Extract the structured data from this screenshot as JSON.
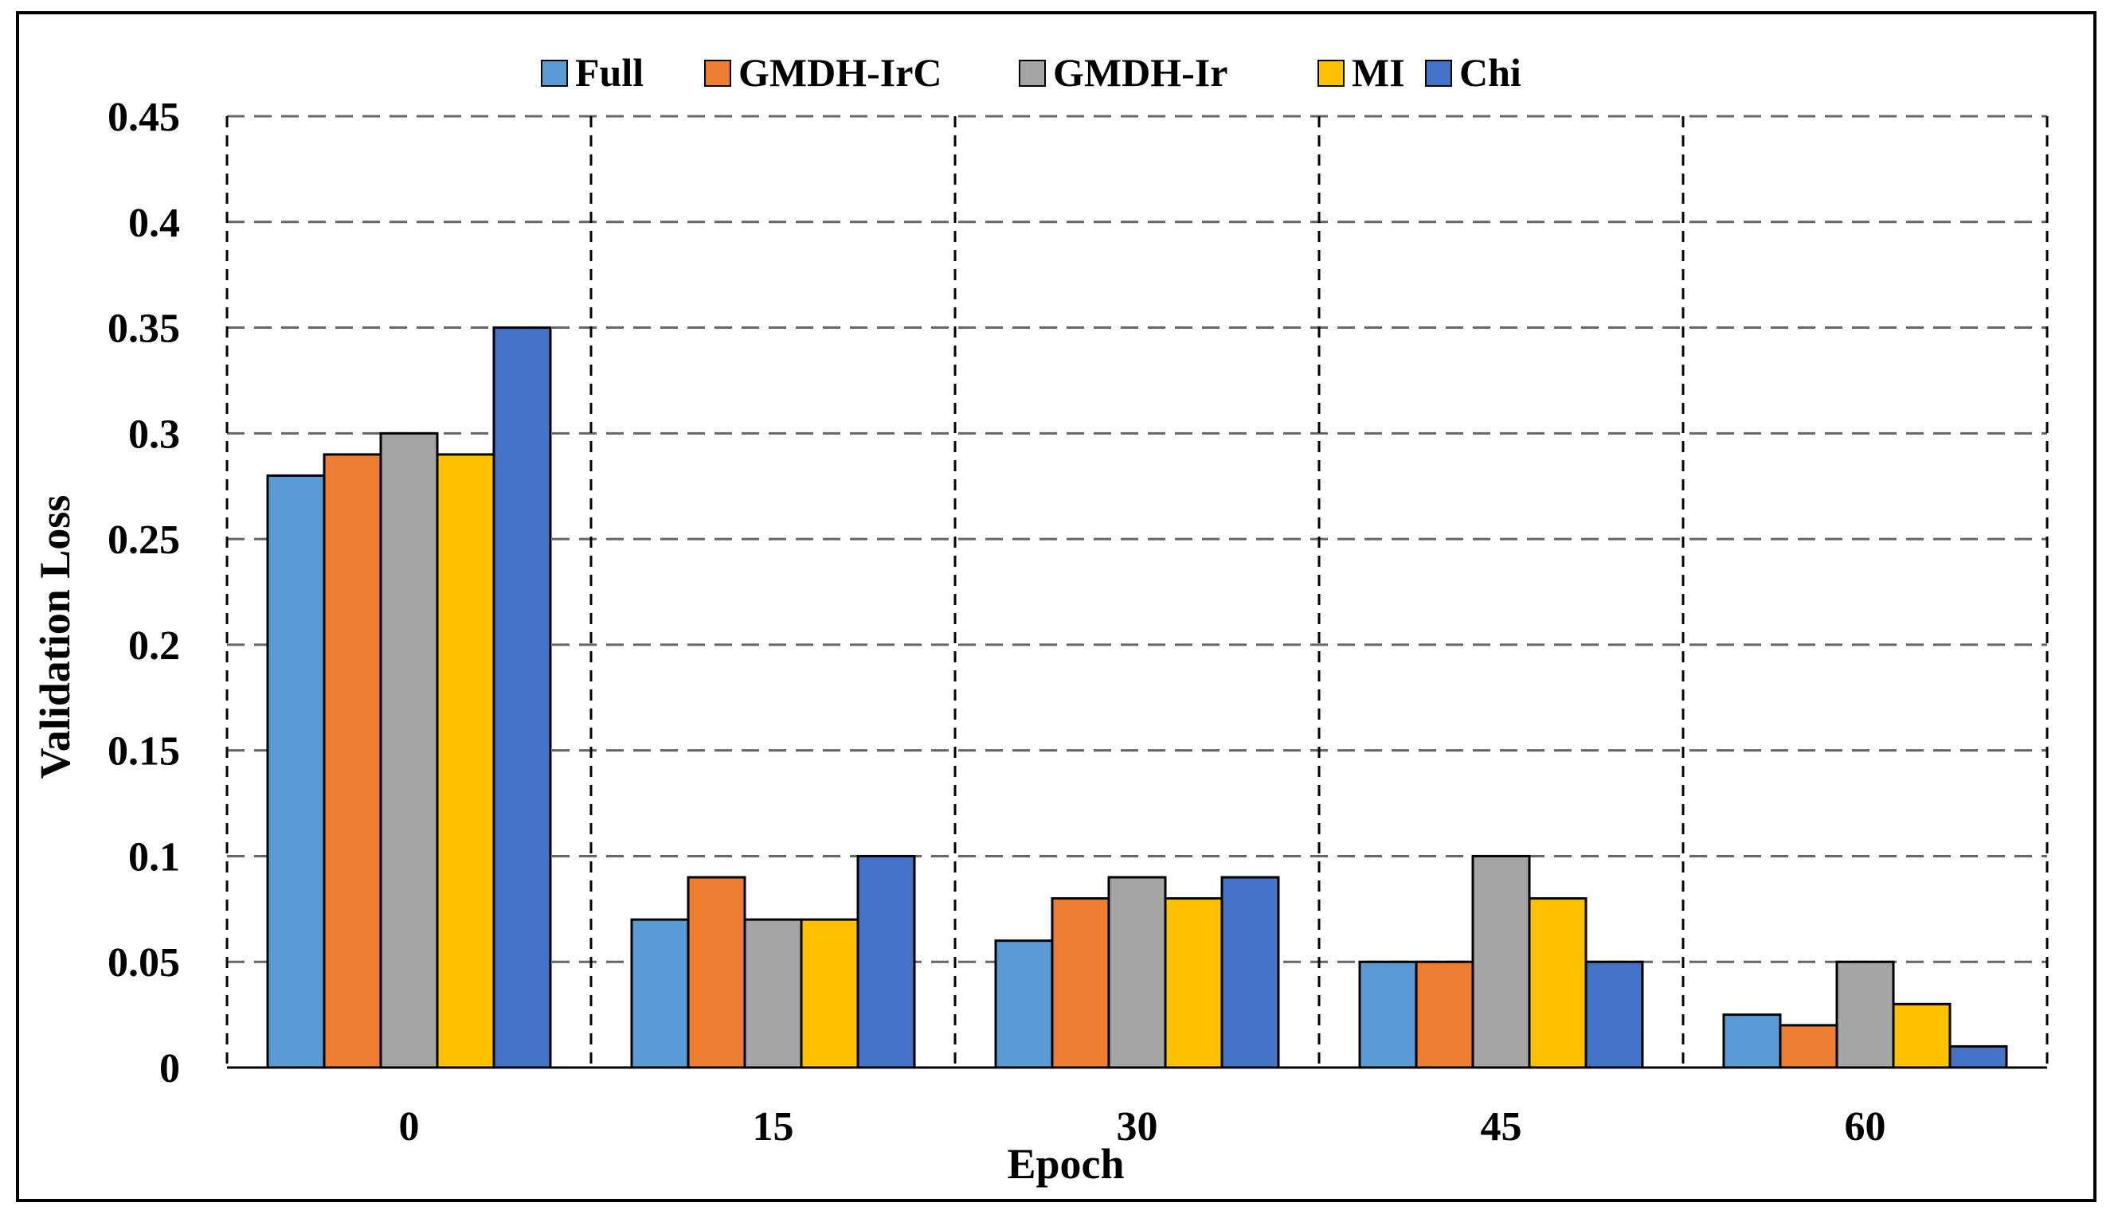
{
  "chart_data": {
    "type": "bar",
    "title": "",
    "xlabel": "Epoch",
    "ylabel": "Validation Loss",
    "categories": [
      "0",
      "15",
      "30",
      "45",
      "60"
    ],
    "ylim": [
      0,
      0.45
    ],
    "yticks": [
      "0",
      "0.05",
      "0.1",
      "0.15",
      "0.2",
      "0.25",
      "0.3",
      "0.35",
      "0.4",
      "0.45"
    ],
    "ytick_values": [
      0,
      0.05,
      0.1,
      0.15,
      0.2,
      0.25,
      0.3,
      0.35,
      0.4,
      0.45
    ],
    "grid": true,
    "legend_position": "top",
    "series": [
      {
        "name": "Full",
        "color": "#5B9BD5",
        "values": [
          0.28,
          0.07,
          0.06,
          0.05,
          0.025
        ]
      },
      {
        "name": "GMDH-IrC",
        "color": "#ED7D31",
        "values": [
          0.29,
          0.09,
          0.08,
          0.05,
          0.02
        ]
      },
      {
        "name": "GMDH-Ir",
        "color": "#A5A5A5",
        "values": [
          0.3,
          0.07,
          0.09,
          0.1,
          0.05
        ]
      },
      {
        "name": "MI",
        "color": "#FFC000",
        "values": [
          0.29,
          0.07,
          0.08,
          0.08,
          0.03
        ]
      },
      {
        "name": "Chi",
        "color": "#4472C4",
        "values": [
          0.35,
          0.1,
          0.09,
          0.05,
          0.01
        ]
      }
    ]
  }
}
